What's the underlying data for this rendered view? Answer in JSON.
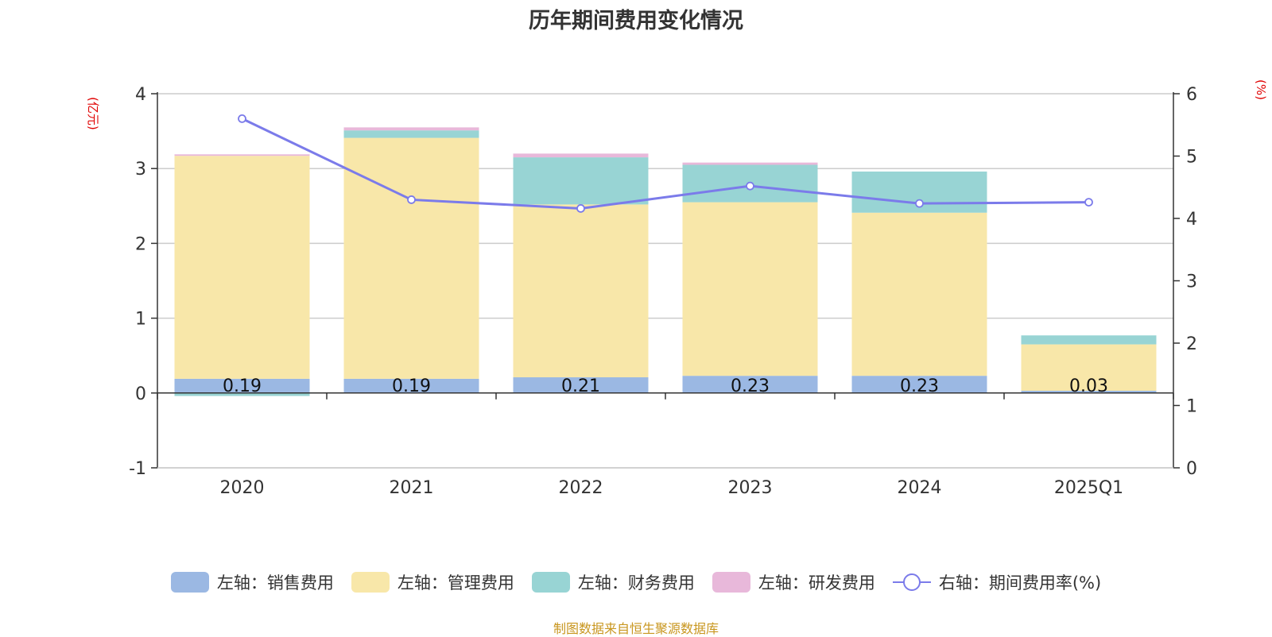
{
  "chart_data": {
    "type": "bar",
    "title": "历年期间费用变化情况",
    "categories": [
      "2020",
      "2021",
      "2022",
      "2023",
      "2024",
      "2025Q1"
    ],
    "left_axis": {
      "unit_label": "(亿元)",
      "ylim": [
        -1,
        4
      ],
      "ticks": [
        "-1",
        "0",
        "1",
        "2",
        "3",
        "4"
      ]
    },
    "right_axis": {
      "unit_label": "(%)",
      "ylim": [
        0,
        6
      ],
      "ticks": [
        "0",
        "1",
        "2",
        "3",
        "4",
        "5",
        "6"
      ]
    },
    "series": [
      {
        "name": "左轴：销售费用",
        "axis": "left",
        "color": "#9bb8e3",
        "values": [
          0.19,
          0.19,
          0.21,
          0.23,
          0.23,
          0.03
        ],
        "labels": [
          "0.19",
          "0.19",
          "0.21",
          "0.23",
          "0.23",
          "0.03"
        ]
      },
      {
        "name": "左轴：管理费用",
        "axis": "left",
        "color": "#f8e7a9",
        "values": [
          2.98,
          3.22,
          2.31,
          2.32,
          2.18,
          0.62
        ]
      },
      {
        "name": "左轴：财务费用",
        "axis": "left",
        "color": "#98d4d4",
        "values": [
          -0.04,
          0.1,
          0.63,
          0.5,
          0.55,
          0.12
        ]
      },
      {
        "name": "左轴：研发费用",
        "axis": "left",
        "color": "#e8b8da",
        "values": [
          0.02,
          0.04,
          0.05,
          0.03,
          0.0,
          0.0
        ]
      },
      {
        "name": "右轴：期间费用率(%)",
        "axis": "right",
        "type": "line",
        "color": "#7b7bea",
        "values": [
          5.6,
          4.3,
          4.16,
          4.52,
          4.24,
          4.26
        ]
      }
    ],
    "grid": true,
    "legend_position": "bottom"
  },
  "source_note": "制图数据来自恒生聚源数据库"
}
